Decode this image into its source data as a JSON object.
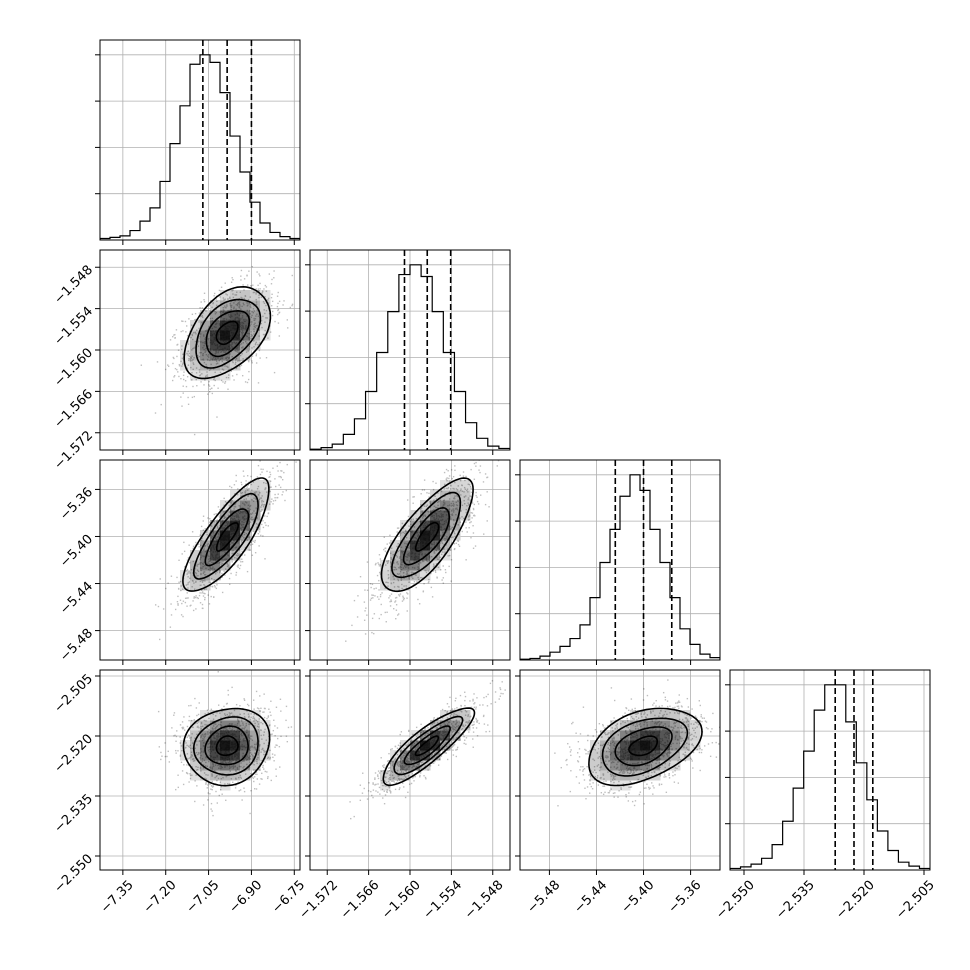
{
  "chart_data": {
    "type": "corner",
    "grid": true,
    "parameters": [
      {
        "range": [
          -7.43,
          -6.73
        ],
        "ticks": [
          -7.35,
          -7.2,
          -7.05,
          -6.9,
          -6.75
        ],
        "tick_labels": [
          "−7.35",
          "−7.20",
          "−7.05",
          "−6.90",
          "−6.75"
        ],
        "mean": -6.985,
        "sd": 0.075,
        "quantiles": [
          -7.07,
          -6.985,
          -6.9
        ],
        "hist_counts": [
          0.008,
          0.014,
          0.022,
          0.05,
          0.1,
          0.17,
          0.31,
          0.51,
          0.71,
          0.93,
          0.98,
          0.94,
          0.78,
          0.55,
          0.36,
          0.2,
          0.09,
          0.04,
          0.018,
          0.008
        ]
      },
      {
        "range": [
          -1.5745,
          -1.5455
        ],
        "ticks": [
          -1.572,
          -1.566,
          -1.56,
          -1.554,
          -1.548
        ],
        "tick_labels": [
          "−1.572",
          "−1.566",
          "−1.560",
          "−1.554",
          "−1.548"
        ],
        "mean": -1.5575,
        "sd": 0.0033,
        "quantiles": [
          -1.5608,
          -1.5575,
          -1.5541
        ],
        "hist_counts": [
          0.004,
          0.012,
          0.03,
          0.08,
          0.16,
          0.3,
          0.5,
          0.71,
          0.9,
          0.95,
          0.89,
          0.71,
          0.5,
          0.3,
          0.14,
          0.06,
          0.02,
          0.008
        ]
      },
      {
        "range": [
          -5.505,
          -5.335
        ],
        "ticks": [
          -5.48,
          -5.44,
          -5.4,
          -5.36
        ],
        "tick_labels": [
          "−5.48",
          "−5.44",
          "−5.40",
          "−5.36"
        ],
        "mean": -5.4,
        "sd": 0.024,
        "quantiles": [
          -5.424,
          -5.4,
          -5.376
        ],
        "hist_counts": [
          0.004,
          0.008,
          0.02,
          0.04,
          0.07,
          0.11,
          0.18,
          0.32,
          0.5,
          0.67,
          0.84,
          0.95,
          0.87,
          0.67,
          0.5,
          0.32,
          0.16,
          0.08,
          0.03,
          0.012
        ]
      },
      {
        "range": [
          -2.5535,
          -2.5035
        ],
        "ticks": [
          -2.55,
          -2.535,
          -2.52,
          -2.505
        ],
        "tick_labels": [
          "−2.550",
          "−2.535",
          "−2.520",
          "−2.505"
        ],
        "mean": -2.5225,
        "sd": 0.0048,
        "quantiles": [
          -2.5272,
          -2.5225,
          -2.5178
        ],
        "hist_counts": [
          0.008,
          0.016,
          0.03,
          0.06,
          0.13,
          0.25,
          0.42,
          0.61,
          0.82,
          0.95,
          0.95,
          0.76,
          0.55,
          0.36,
          0.2,
          0.1,
          0.04,
          0.02,
          0.008
        ]
      }
    ],
    "correlations": [
      {
        "row": 1,
        "col": 0,
        "rho": 0.45
      },
      {
        "row": 2,
        "col": 0,
        "rho": 0.8
      },
      {
        "row": 2,
        "col": 1,
        "rho": 0.75
      },
      {
        "row": 3,
        "col": 0,
        "rho": 0.1
      },
      {
        "row": 3,
        "col": 1,
        "rho": 0.85
      },
      {
        "row": 3,
        "col": 2,
        "rho": 0.4
      }
    ],
    "contour_levels_sigma": [
      0.5,
      1.0,
      1.5,
      2.0
    ]
  }
}
